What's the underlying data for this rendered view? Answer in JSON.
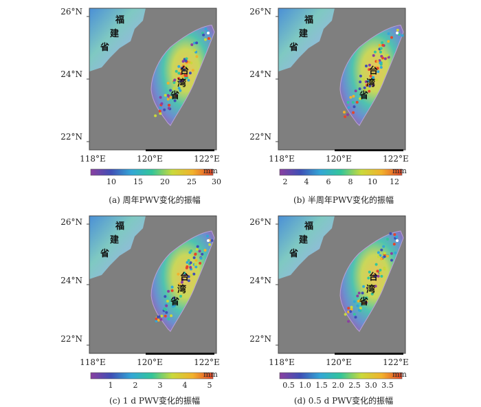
{
  "panels": [
    {
      "id": "a",
      "caption": "(a) 周年PWV变化的振幅",
      "unit": "mm",
      "colorbar_ticks": [
        "10",
        "15",
        "20",
        "25",
        "30"
      ],
      "lat_labels": [
        "26°N",
        "24°N",
        "22°N"
      ],
      "lon_labels": [
        "118°E",
        "120°E",
        "122°E"
      ],
      "region_labels": {
        "fujian": [
          "福",
          "建",
          "省"
        ],
        "taiwan": [
          "台",
          "湾",
          "省"
        ]
      }
    },
    {
      "id": "b",
      "caption": "(b) 半周年PWV变化的振幅",
      "unit": "mm",
      "colorbar_ticks": [
        "2",
        "4",
        "6",
        "8",
        "10",
        "12"
      ],
      "lat_labels": [
        "26°N",
        "24°N",
        "22°N"
      ],
      "lon_labels": [
        "118°E",
        "120°E",
        "122°E"
      ],
      "region_labels": {
        "fujian": [
          "福",
          "建",
          "省"
        ],
        "taiwan": [
          "台",
          "湾",
          "省"
        ]
      }
    },
    {
      "id": "c",
      "caption": "(c) 1 d PWV变化的振幅",
      "unit": "mm",
      "colorbar_ticks": [
        "1",
        "2",
        "3",
        "4",
        "5"
      ],
      "lat_labels": [
        "26°N",
        "24°N",
        "22°N"
      ],
      "lon_labels": [
        "118°E",
        "120°E",
        "122°E"
      ],
      "region_labels": {
        "fujian": [
          "福",
          "建",
          "省"
        ],
        "taiwan": [
          "台",
          "湾",
          "省"
        ]
      }
    },
    {
      "id": "d",
      "caption": "(d) 0.5 d PWV变化的振幅",
      "unit": "mm",
      "colorbar_ticks": [
        "0.5",
        "1.0",
        "1.5",
        "2.0",
        "2.5",
        "3.0",
        "3.5"
      ],
      "lat_labels": [
        "26°N",
        "24°N",
        "22°N"
      ],
      "lon_labels": [
        "118°E",
        "120°E",
        "122°E"
      ],
      "region_labels": {
        "fujian": [
          "福",
          "建",
          "省"
        ],
        "taiwan": [
          "台",
          "湾",
          "省"
        ]
      }
    }
  ],
  "colors": {
    "sea": "#7f7f7f",
    "colormap": [
      "#8a3fa0",
      "#3f4fb5",
      "#33a7d6",
      "#33c59a",
      "#c9d93b",
      "#f1b22c",
      "#e5452a"
    ]
  }
}
